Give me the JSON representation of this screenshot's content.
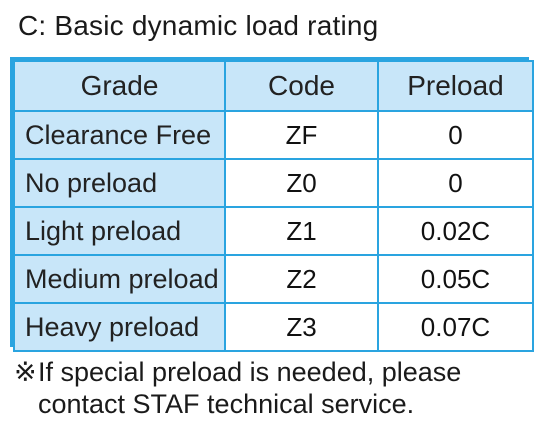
{
  "title": "C: Basic dynamic load rating",
  "table": {
    "headers": {
      "grade": "Grade",
      "code": "Code",
      "preload": "Preload"
    },
    "rows": [
      {
        "grade": "Clearance Free",
        "code": "ZF",
        "preload": "0"
      },
      {
        "grade": "No preload",
        "code": "Z0",
        "preload": "0"
      },
      {
        "grade": "Light preload",
        "code": "Z1",
        "preload": "0.02C"
      },
      {
        "grade": "Medium preload",
        "code": "Z2",
        "preload": "0.05C"
      },
      {
        "grade": "Heavy preload",
        "code": "Z3",
        "preload": "0.07C"
      }
    ]
  },
  "note": {
    "mark": "※",
    "line1": "If special preload is needed, please",
    "line2": "contact STAF technical service."
  },
  "colors": {
    "border": "#2aa4e0",
    "header_fill": "#c8e6f9",
    "cell_fill": "#ffffff"
  }
}
